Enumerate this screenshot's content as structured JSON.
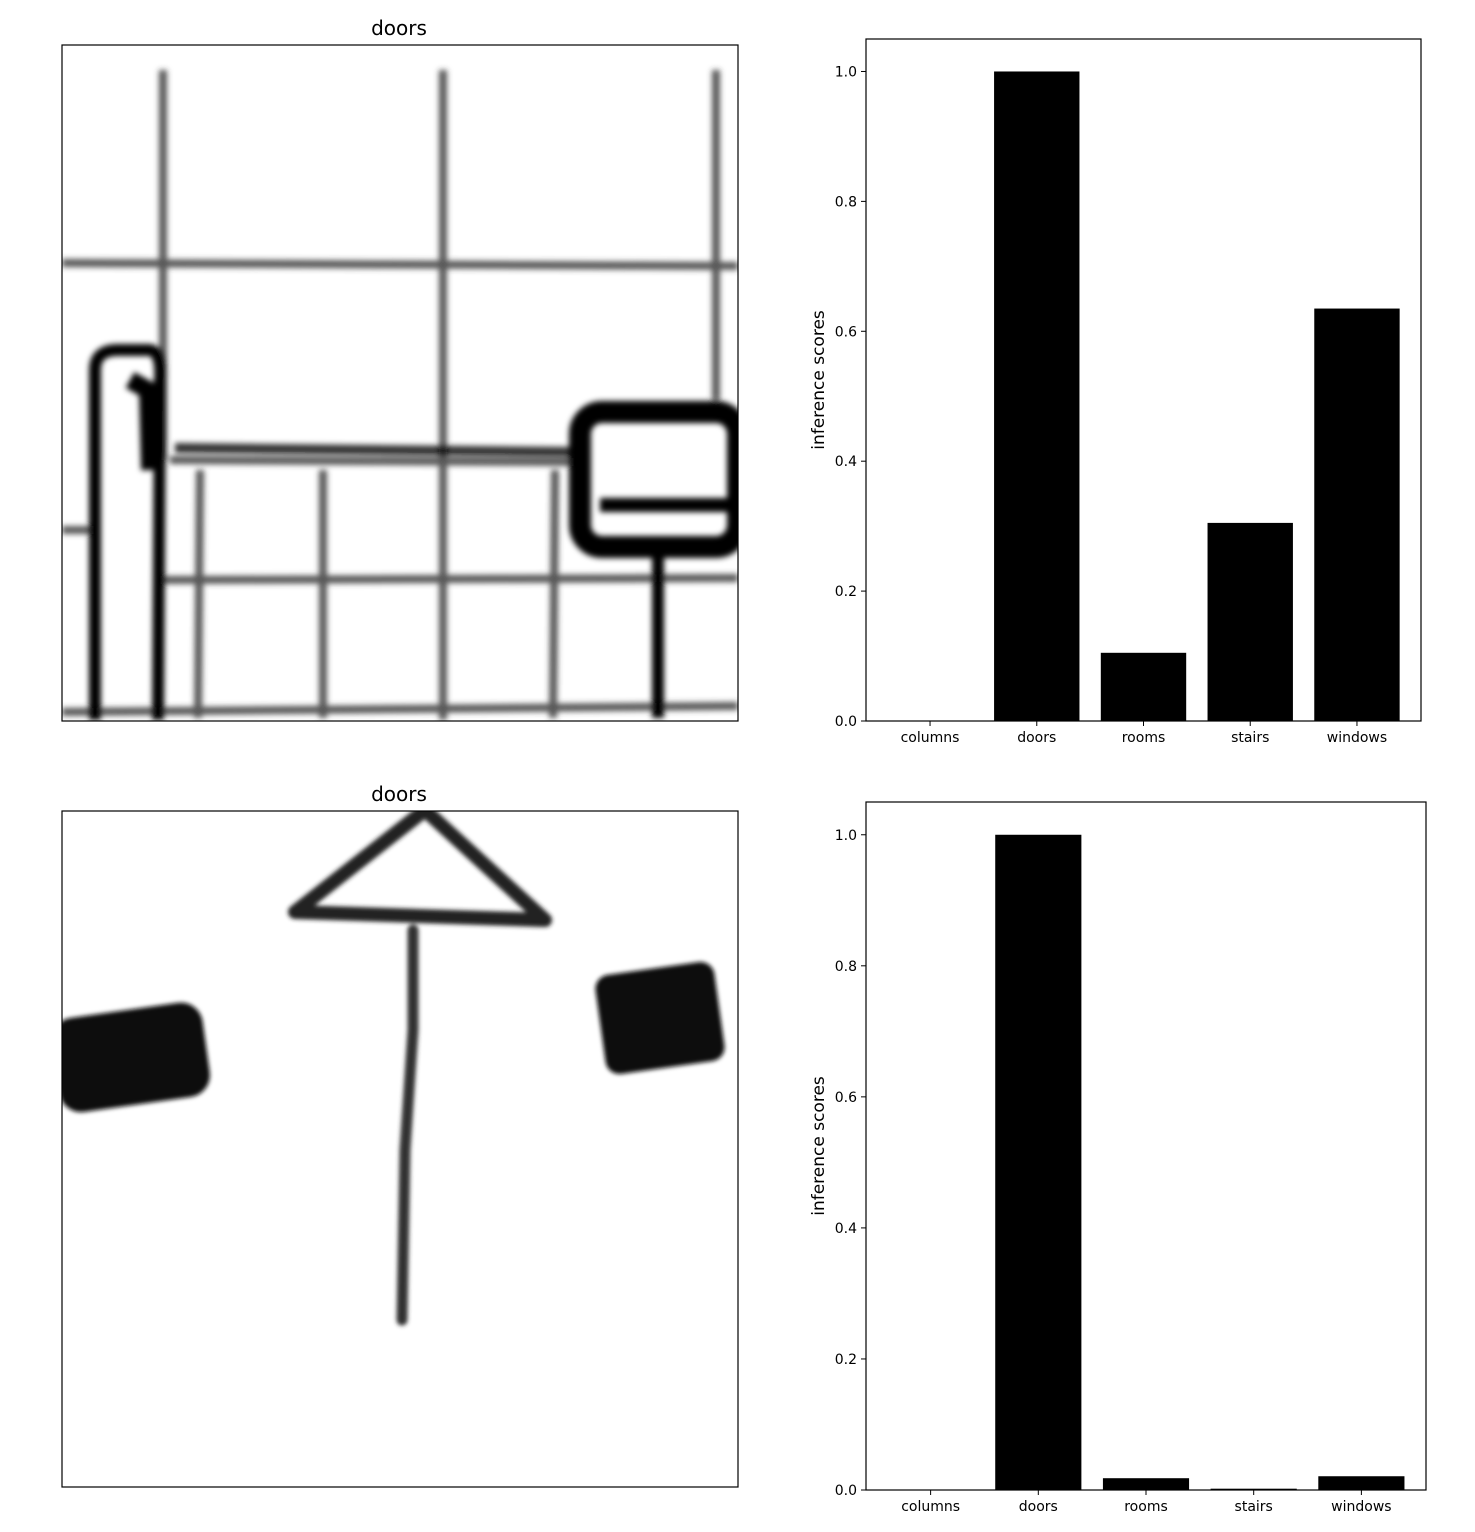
{
  "panels": [
    {
      "image": {
        "title": "doors",
        "content": "blurred sketch crop: grid lines with a dark horizontal rectangle at right"
      },
      "chart_data": {
        "type": "bar",
        "categories": [
          "columns",
          "doors",
          "rooms",
          "stairs",
          "windows"
        ],
        "values": [
          0.0,
          1.0,
          0.105,
          0.305,
          0.635
        ],
        "ylabel": "inference scores",
        "ylim": [
          0,
          1.05
        ],
        "yticks": [
          "0.0",
          "0.2",
          "0.4",
          "0.6",
          "0.8",
          "1.0"
        ],
        "bar_color": "#000000"
      }
    },
    {
      "image": {
        "title": "doors",
        "content": "blurred sketch crop: triangular door symbol with a long stem and two dark blocks"
      },
      "chart_data": {
        "type": "bar",
        "categories": [
          "columns",
          "doors",
          "rooms",
          "stairs",
          "windows"
        ],
        "values": [
          0.0,
          1.0,
          0.018,
          0.002,
          0.021
        ],
        "ylabel": "inference scores",
        "ylim": [
          0,
          1.05
        ],
        "yticks": [
          "0.0",
          "0.2",
          "0.4",
          "0.6",
          "0.8",
          "1.0"
        ],
        "bar_color": "#000000"
      }
    }
  ]
}
